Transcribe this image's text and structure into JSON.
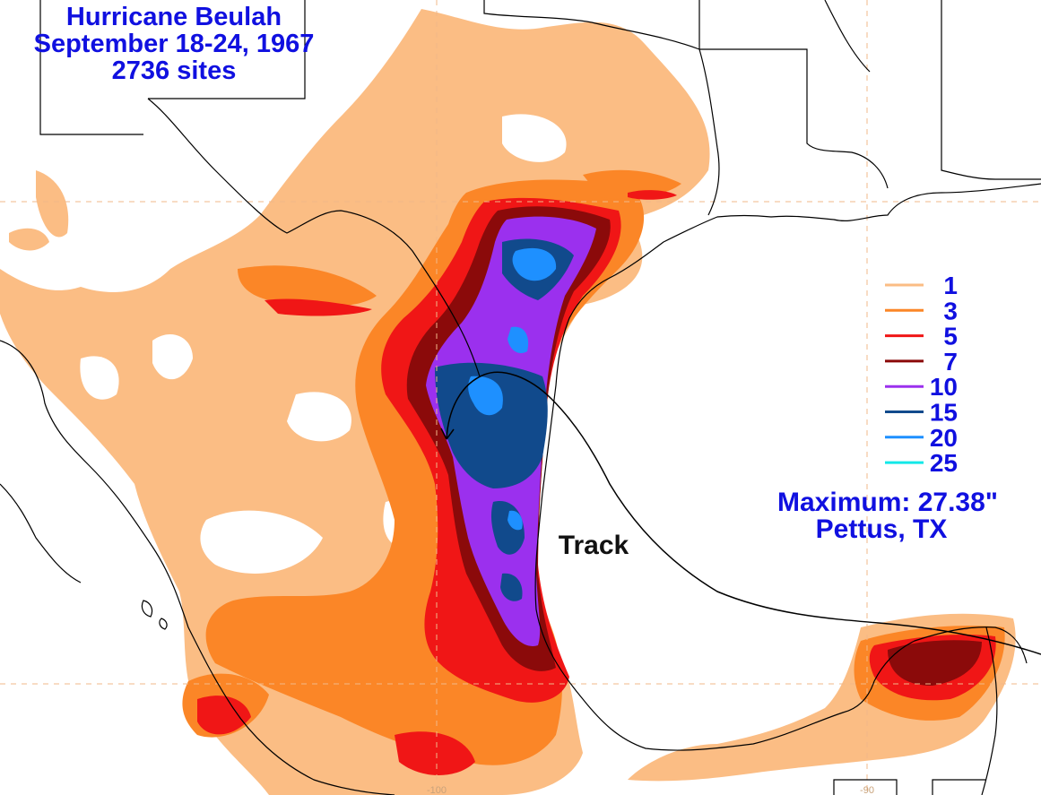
{
  "title": {
    "line1": "Hurricane Beulah",
    "line2": "September 18-24, 1967",
    "line3": "2736 sites"
  },
  "legend": {
    "items": [
      {
        "label": "1",
        "color": "#fbbd84"
      },
      {
        "label": "3",
        "color": "#fb8627"
      },
      {
        "label": "5",
        "color": "#f01616"
      },
      {
        "label": "7",
        "color": "#8b0a0a"
      },
      {
        "label": "10",
        "color": "#9b30ee"
      },
      {
        "label": "15",
        "color": "#114a8c"
      },
      {
        "label": "20",
        "color": "#1e90ff"
      },
      {
        "label": "25",
        "color": "#13e8e8"
      }
    ]
  },
  "maximum": {
    "line1": "Maximum:  27.38\"",
    "line2": "Pettus, TX"
  },
  "track_label": "Track",
  "axis_ticks": {
    "bottom_lon_1": "-90",
    "bottom_lon_2": "-100"
  },
  "colors": {
    "title_blue": "#1010e0",
    "boundary": "#000000",
    "gridline": "#f0b889"
  }
}
